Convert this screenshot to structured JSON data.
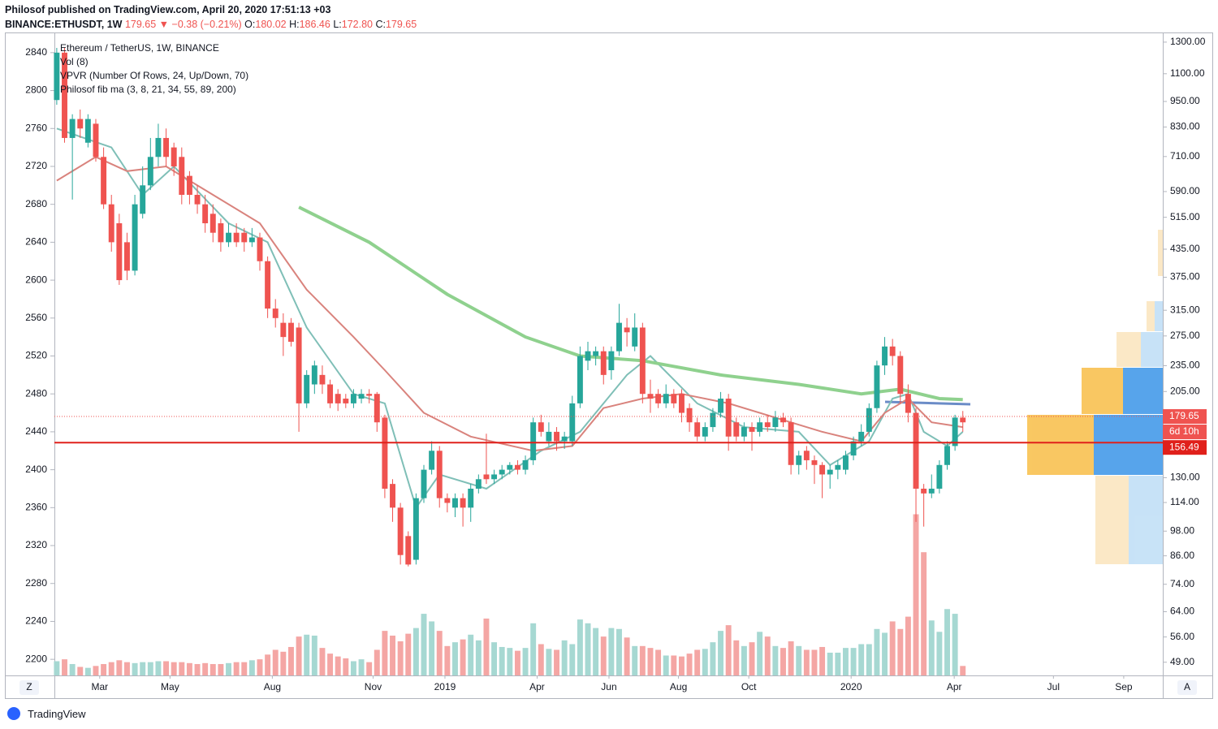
{
  "header": {
    "publisher": "Philosof published on TradingView.com, April 20, 2020 17:51:13 +03",
    "symbol": "BINANCE:ETHUSDT, 1W",
    "last": "179.65",
    "arrow": "▼",
    "change": "−0.38 (−0.21%)",
    "o_label": "O:",
    "o": "180.02",
    "h_label": "H:",
    "h": "186.46",
    "l_label": "L:",
    "l": "172.80",
    "c_label": "C:",
    "c": "179.65"
  },
  "legend": [
    "Ethereum / TetherUS, 1W, BINANCE",
    "Vol (8)",
    "VPVR (Number Of Rows, 24, Up/Down, 70)",
    "Philosof fib ma (3, 8, 21, 34, 55, 89, 200)"
  ],
  "footer": {
    "brand": "TradingView",
    "left_button": "Z",
    "right_button": "A"
  },
  "chart_data": {
    "type": "candlestick",
    "xlim": [
      -0.3,
      141.6
    ],
    "xticks": [
      {
        "value": 5.5,
        "label": "Mar"
      },
      {
        "value": 14.5,
        "label": "May"
      },
      {
        "value": 27.6,
        "label": "Aug"
      },
      {
        "value": 40.5,
        "label": "Nov"
      },
      {
        "value": 49.7,
        "label": "2019"
      },
      {
        "value": 61.5,
        "label": "Apr"
      },
      {
        "value": 70.7,
        "label": "Jun"
      },
      {
        "value": 79.6,
        "label": "Aug"
      },
      {
        "value": 88.6,
        "label": "Oct"
      },
      {
        "value": 101.7,
        "label": "2020"
      },
      {
        "value": 114.9,
        "label": "Apr"
      },
      {
        "value": 127.6,
        "label": "Jul"
      },
      {
        "value": 136.6,
        "label": "Sep"
      }
    ],
    "ylim": [
      2183,
      2857
    ],
    "yticks": [
      2200,
      2240,
      2280,
      2320,
      2360,
      2400,
      2440,
      2480,
      2520,
      2560,
      2600,
      2640,
      2680,
      2720,
      2760,
      2800,
      2840
    ],
    "y2lim": [
      45.7,
      1339
    ],
    "y2log": true,
    "y2ticks": [
      {
        "value": 1300,
        "label": "1300.00"
      },
      {
        "value": 1100,
        "label": "1100.00"
      },
      {
        "value": 950,
        "label": "950.00"
      },
      {
        "value": 830,
        "label": "830.00"
      },
      {
        "value": 710,
        "label": "710.00"
      },
      {
        "value": 590,
        "label": "590.00"
      },
      {
        "value": 515,
        "label": "515.00"
      },
      {
        "value": 435,
        "label": "435.00"
      },
      {
        "value": 375,
        "label": "375.00"
      },
      {
        "value": 315,
        "label": "315.00"
      },
      {
        "value": 275,
        "label": "275.00"
      },
      {
        "value": 235,
        "label": "235.00"
      },
      {
        "value": 205,
        "label": "205.00"
      },
      {
        "value": 130,
        "label": "130.00"
      },
      {
        "value": 114,
        "label": "114.00"
      },
      {
        "value": 98,
        "label": "98.00"
      },
      {
        "value": 86,
        "label": "86.00"
      },
      {
        "value": 74,
        "label": "74.00"
      },
      {
        "value": 64,
        "label": "64.00"
      },
      {
        "value": 56,
        "label": "56.00"
      },
      {
        "value": 49,
        "label": "49.00"
      }
    ],
    "up_color": "#26a69a",
    "down_color": "#ef5350",
    "up_volume_color": "#a6d8d2",
    "down_volume_color": "#f4a6a4",
    "candles": [
      [
        2790,
        2845,
        2785,
        2840
      ],
      [
        2840,
        2845,
        2745,
        2750
      ],
      [
        2750,
        2775,
        2685,
        2770
      ],
      [
        2770,
        2780,
        2750,
        2760
      ],
      [
        2745,
        2775,
        2740,
        2770
      ],
      [
        2765,
        2770,
        2725,
        2730
      ],
      [
        2730,
        2740,
        2675,
        2680
      ],
      [
        2680,
        2690,
        2630,
        2640
      ],
      [
        2660,
        2670,
        2595,
        2600
      ],
      [
        2640,
        2650,
        2600,
        2610
      ],
      [
        2610,
        2690,
        2605,
        2680
      ],
      [
        2670,
        2720,
        2665,
        2700
      ],
      [
        2700,
        2750,
        2695,
        2730
      ],
      [
        2730,
        2765,
        2720,
        2750
      ],
      [
        2750,
        2760,
        2720,
        2730
      ],
      [
        2740,
        2745,
        2710,
        2720
      ],
      [
        2730,
        2740,
        2680,
        2690
      ],
      [
        2710,
        2715,
        2680,
        2690
      ],
      [
        2690,
        2700,
        2670,
        2680
      ],
      [
        2680,
        2690,
        2650,
        2660
      ],
      [
        2670,
        2680,
        2640,
        2650
      ],
      [
        2660,
        2665,
        2630,
        2640
      ],
      [
        2640,
        2660,
        2635,
        2650
      ],
      [
        2650,
        2660,
        2635,
        2640
      ],
      [
        2650,
        2655,
        2630,
        2640
      ],
      [
        2640,
        2655,
        2635,
        2645
      ],
      [
        2645,
        2650,
        2610,
        2620
      ],
      [
        2620,
        2625,
        2560,
        2570
      ],
      [
        2570,
        2580,
        2550,
        2560
      ],
      [
        2555,
        2565,
        2520,
        2540
      ],
      [
        2555,
        2560,
        2530,
        2535
      ],
      [
        2550,
        2555,
        2440,
        2470
      ],
      [
        2470,
        2505,
        2465,
        2500
      ],
      [
        2490,
        2515,
        2480,
        2510
      ],
      [
        2500,
        2510,
        2480,
        2490
      ],
      [
        2490,
        2495,
        2465,
        2470
      ],
      [
        2480,
        2485,
        2462,
        2470
      ],
      [
        2475,
        2480,
        2465,
        2470
      ],
      [
        2470,
        2485,
        2465,
        2480
      ],
      [
        2475,
        2485,
        2470,
        2480
      ],
      [
        2480,
        2485,
        2470,
        2478
      ],
      [
        2480,
        2482,
        2440,
        2450
      ],
      [
        2455,
        2458,
        2370,
        2380
      ],
      [
        2385,
        2390,
        2345,
        2360
      ],
      [
        2360,
        2365,
        2300,
        2310
      ],
      [
        2330,
        2335,
        2298,
        2300
      ],
      [
        2305,
        2375,
        2300,
        2370
      ],
      [
        2370,
        2405,
        2365,
        2400
      ],
      [
        2400,
        2430,
        2395,
        2420
      ],
      [
        2420,
        2425,
        2360,
        2370
      ],
      [
        2370,
        2375,
        2355,
        2365
      ],
      [
        2360,
        2375,
        2350,
        2370
      ],
      [
        2370,
        2375,
        2340,
        2360
      ],
      [
        2360,
        2385,
        2345,
        2380
      ],
      [
        2380,
        2395,
        2375,
        2390
      ],
      [
        2395,
        2438,
        2385,
        2390
      ],
      [
        2390,
        2400,
        2385,
        2395
      ],
      [
        2395,
        2405,
        2390,
        2400
      ],
      [
        2400,
        2408,
        2395,
        2405
      ],
      [
        2405,
        2410,
        2395,
        2400
      ],
      [
        2400,
        2415,
        2395,
        2410
      ],
      [
        2410,
        2455,
        2405,
        2450
      ],
      [
        2450,
        2458,
        2435,
        2440
      ],
      [
        2430,
        2450,
        2425,
        2440
      ],
      [
        2440,
        2445,
        2420,
        2430
      ],
      [
        2430,
        2440,
        2422,
        2435
      ],
      [
        2430,
        2478,
        2425,
        2470
      ],
      [
        2470,
        2530,
        2465,
        2520
      ],
      [
        2515,
        2535,
        2505,
        2525
      ],
      [
        2520,
        2530,
        2510,
        2525
      ],
      [
        2525,
        2530,
        2490,
        2500
      ],
      [
        2505,
        2530,
        2495,
        2525
      ],
      [
        2525,
        2575,
        2520,
        2555
      ],
      [
        2550,
        2560,
        2530,
        2545
      ],
      [
        2530,
        2565,
        2525,
        2550
      ],
      [
        2550,
        2555,
        2470,
        2480
      ],
      [
        2480,
        2495,
        2460,
        2475
      ],
      [
        2480,
        2485,
        2465,
        2470
      ],
      [
        2470,
        2490,
        2465,
        2480
      ],
      [
        2480,
        2485,
        2465,
        2470
      ],
      [
        2480,
        2485,
        2450,
        2460
      ],
      [
        2465,
        2470,
        2440,
        2450
      ],
      [
        2450,
        2455,
        2430,
        2435
      ],
      [
        2435,
        2450,
        2430,
        2445
      ],
      [
        2445,
        2465,
        2440,
        2460
      ],
      [
        2460,
        2482,
        2455,
        2475
      ],
      [
        2475,
        2480,
        2420,
        2435
      ],
      [
        2450,
        2455,
        2430,
        2435
      ],
      [
        2435,
        2450,
        2430,
        2445
      ],
      [
        2445,
        2450,
        2420,
        2440
      ],
      [
        2440,
        2455,
        2435,
        2450
      ],
      [
        2450,
        2458,
        2440,
        2445
      ],
      [
        2445,
        2462,
        2440,
        2455
      ],
      [
        2455,
        2460,
        2445,
        2450
      ],
      [
        2450,
        2455,
        2395,
        2405
      ],
      [
        2405,
        2420,
        2395,
        2415
      ],
      [
        2420,
        2425,
        2400,
        2410
      ],
      [
        2410,
        2415,
        2385,
        2405
      ],
      [
        2405,
        2408,
        2370,
        2395
      ],
      [
        2395,
        2405,
        2380,
        2400
      ],
      [
        2400,
        2410,
        2390,
        2405
      ],
      [
        2400,
        2420,
        2395,
        2415
      ],
      [
        2415,
        2435,
        2410,
        2430
      ],
      [
        2430,
        2448,
        2425,
        2440
      ],
      [
        2440,
        2470,
        2435,
        2465
      ],
      [
        2465,
        2515,
        2460,
        2510
      ],
      [
        2510,
        2540,
        2500,
        2530
      ],
      [
        2530,
        2538,
        2510,
        2520
      ],
      [
        2520,
        2525,
        2470,
        2480
      ],
      [
        2480,
        2490,
        2450,
        2460
      ],
      [
        2460,
        2465,
        2345,
        2380
      ],
      [
        2380,
        2385,
        2340,
        2375
      ],
      [
        2375,
        2395,
        2370,
        2380
      ],
      [
        2380,
        2410,
        2375,
        2405
      ],
      [
        2405,
        2430,
        2400,
        2425
      ],
      [
        2425,
        2458,
        2420,
        2455
      ],
      [
        2455,
        2462,
        2440,
        2450
      ]
    ],
    "volumes": [
      2198,
      2200,
      2195,
      2192,
      2191,
      2193,
      2195,
      2197,
      2199,
      2197,
      2196,
      2197,
      2197,
      2198,
      2198,
      2197,
      2197,
      2196,
      2195,
      2196,
      2195,
      2195,
      2196,
      2197,
      2197,
      2199,
      2200,
      2205,
      2210,
      2208,
      2213,
      2224,
      2226,
      2225,
      2212,
      2206,
      2203,
      2201,
      2198,
      2200,
      2197,
      2210,
      2230,
      2225,
      2219,
      2227,
      2233,
      2248,
      2240,
      2230,
      2214,
      2218,
      2221,
      2226,
      2220,
      2243,
      2218,
      2213,
      2212,
      2209,
      2212,
      2238,
      2216,
      2211,
      2210,
      2220,
      2216,
      2242,
      2238,
      2233,
      2224,
      2233,
      2232,
      2223,
      2214,
      2214,
      2212,
      2210,
      2204,
      2204,
      2203,
      2206,
      2210,
      2211,
      2218,
      2230,
      2236,
      2220,
      2214,
      2218,
      2229,
      2224,
      2214,
      2212,
      2219,
      2214,
      2210,
      2210,
      2213,
      2207,
      2207,
      2212,
      2212,
      2216,
      2216,
      2232,
      2228,
      2240,
      2232,
      2245,
      2353,
      2313,
      2241,
      2229,
      2253,
      2248,
      2193
    ],
    "ma_lines": [
      {
        "color": "#7fbfb7",
        "x": [
          0,
          7,
          11,
          15,
          22,
          27,
          32,
          38,
          42,
          46,
          49,
          55,
          62,
          67,
          73,
          76,
          82,
          88,
          95,
          99,
          104,
          107,
          109,
          111,
          114,
          116
        ],
        "values": [
          2760,
          2740,
          2690,
          2720,
          2660,
          2640,
          2550,
          2480,
          2470,
          2360,
          2395,
          2380,
          2420,
          2440,
          2500,
          2520,
          2470,
          2445,
          2440,
          2405,
          2430,
          2475,
          2480,
          2440,
          2425,
          2440
        ]
      },
      {
        "color": "#d9837d",
        "x": [
          0,
          5,
          9,
          14,
          20,
          26,
          32,
          38,
          42,
          47,
          53,
          61,
          66,
          70,
          75,
          80,
          86,
          92,
          98,
          103,
          106,
          109,
          112,
          116
        ],
        "values": [
          2705,
          2730,
          2715,
          2720,
          2690,
          2660,
          2590,
          2540,
          2505,
          2460,
          2435,
          2420,
          2425,
          2465,
          2475,
          2480,
          2470,
          2455,
          2440,
          2430,
          2460,
          2475,
          2450,
          2445
        ]
      },
      {
        "color": "#8fd18e",
        "x": [
          31,
          40,
          50,
          60,
          67,
          75,
          85,
          95,
          103,
          108,
          113,
          116
        ],
        "values": [
          2677,
          2640,
          2585,
          2540,
          2520,
          2515,
          2500,
          2490,
          2480,
          2485,
          2475,
          2474
        ]
      }
    ],
    "last_price": 179.65,
    "last_price_label": "179.65",
    "countdown": "6d 10h",
    "level": 156.49,
    "level_label": "156.49",
    "level_color": "#e0201b"
  }
}
